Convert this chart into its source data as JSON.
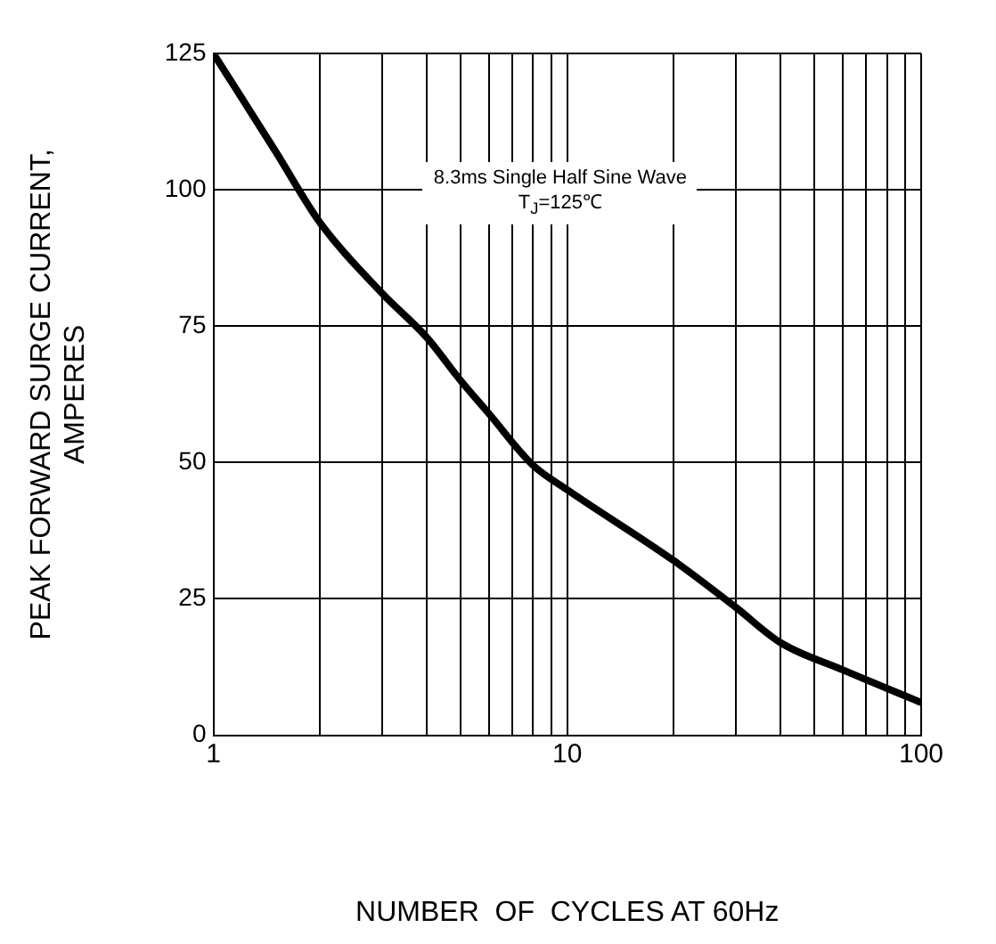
{
  "chart_data": {
    "type": "line",
    "xlabel": "NUMBER  OF  CYCLES AT 60Hz",
    "ylabel": "PEAK FORWARD SURGE CURRENT,\nAMPERES",
    "annotations": [
      "8.3ms Single Half Sine Wave\nT$_{J}$=125℃"
    ],
    "log": "x",
    "grid": true,
    "marker": "none",
    "line_style": "solid",
    "legend": false,
    "xlim": [
      1,
      100
    ],
    "xticks": [
      1,
      {
        "value": 2,
        "label": null
      },
      {
        "value": 3,
        "label": null
      },
      {
        "value": 4,
        "label": null
      },
      {
        "value": 5,
        "label": null
      },
      {
        "value": 6,
        "label": null
      },
      {
        "value": 7,
        "label": null
      },
      {
        "value": 8,
        "label": null
      },
      {
        "value": 9,
        "label": null
      },
      10,
      {
        "value": 20,
        "label": null
      },
      {
        "value": 30,
        "label": null
      },
      {
        "value": 40,
        "label": null
      },
      {
        "value": 50,
        "label": null
      },
      {
        "value": 60,
        "label": null
      },
      {
        "value": 70,
        "label": null
      },
      {
        "value": 80,
        "label": null
      },
      {
        "value": 90,
        "label": null
      },
      100
    ],
    "ylim": [
      0,
      125
    ],
    "yticks": [
      0,
      25,
      50,
      75,
      100,
      125
    ],
    "series": [
      {
        "color": "#000000",
        "x": [
          1,
          1.5,
          2,
          3,
          4,
          5,
          6,
          8,
          10,
          20,
          30,
          40,
          60,
          100
        ],
        "values": [
          125,
          107,
          94,
          81,
          73,
          65,
          59,
          49.5,
          45,
          32,
          23.4,
          17,
          12,
          6
        ]
      }
    ]
  }
}
